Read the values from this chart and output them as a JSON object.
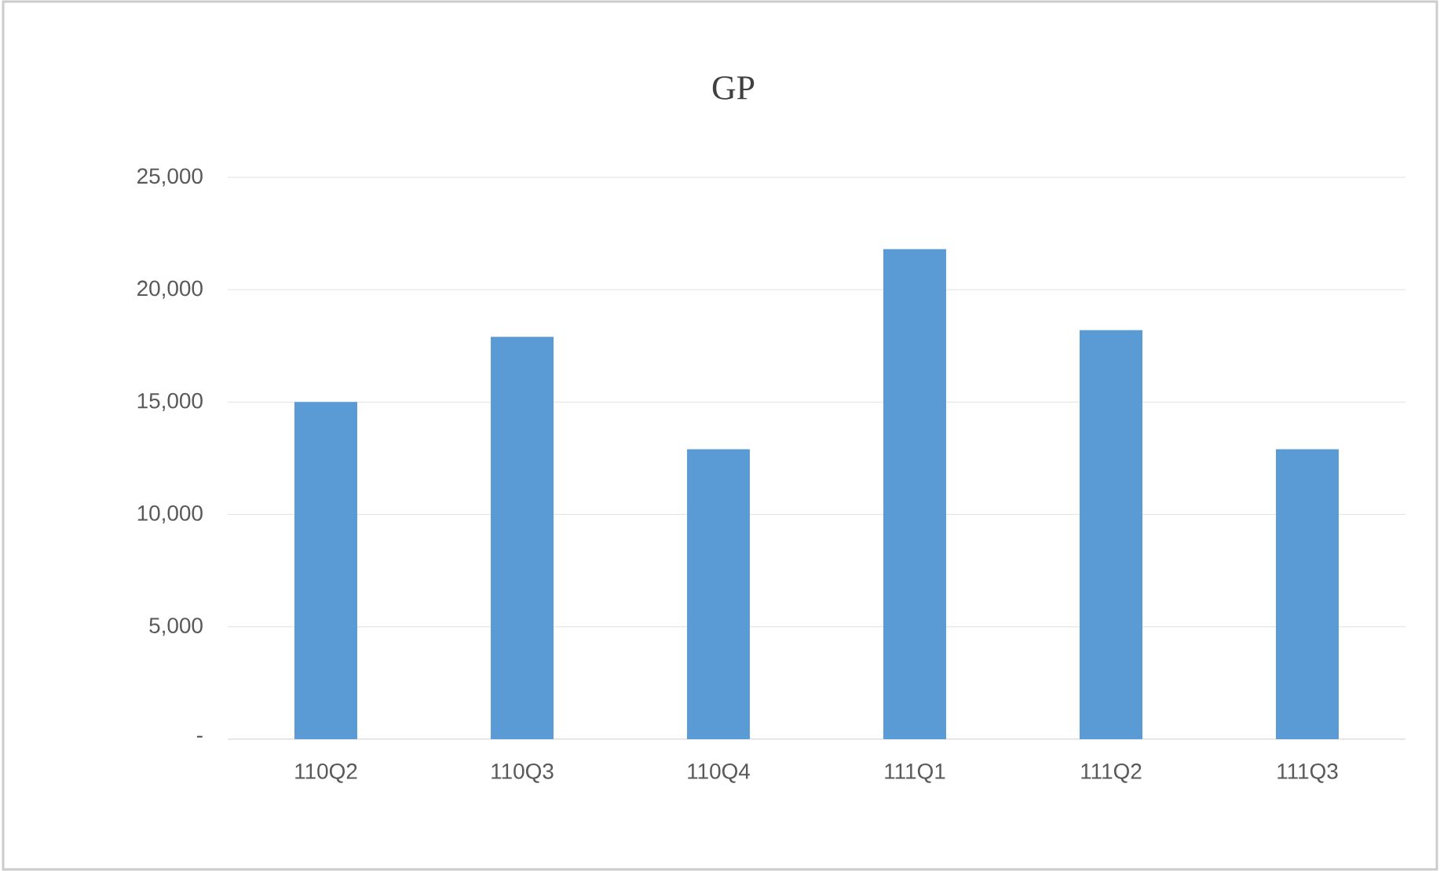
{
  "chart_data": {
    "type": "bar",
    "title": "GP",
    "categories": [
      "110Q2",
      "110Q3",
      "110Q4",
      "111Q1",
      "111Q2",
      "111Q3"
    ],
    "values": [
      15000,
      17900,
      12900,
      21800,
      18200,
      12900
    ],
    "color": "#5b9bd5",
    "ylim": [
      0,
      25000
    ],
    "yticks": [
      {
        "value": 0,
        "label": "-"
      },
      {
        "value": 5000,
        "label": "5,000"
      },
      {
        "value": 10000,
        "label": "10,000"
      },
      {
        "value": 15000,
        "label": "15,000"
      },
      {
        "value": 20000,
        "label": "20,000"
      },
      {
        "value": 25000,
        "label": "25,000"
      }
    ],
    "grid": "y"
  }
}
